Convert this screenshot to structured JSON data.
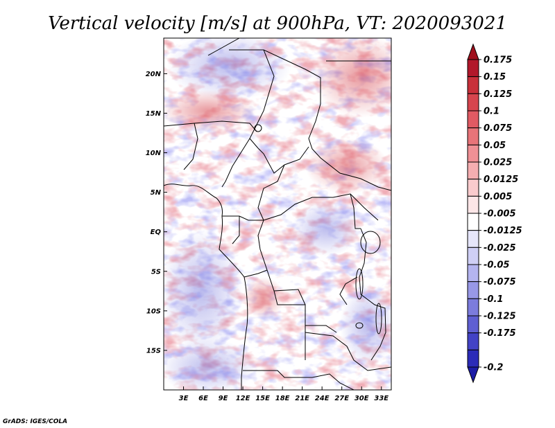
{
  "title": "Vertical velocity [m/s] at 900hPa, VT: 2020093021",
  "credit": "GrADS: IGES/COLA",
  "map": {
    "lon_range": [
      0,
      34.5
    ],
    "lat_range": [
      -20,
      24.5
    ],
    "lat_ticks": [
      {
        "value": 20,
        "label": "20N"
      },
      {
        "value": 15,
        "label": "15N"
      },
      {
        "value": 10,
        "label": "10N"
      },
      {
        "value": 5,
        "label": "5N"
      },
      {
        "value": 0,
        "label": "EQ"
      },
      {
        "value": -5,
        "label": "5S"
      },
      {
        "value": -10,
        "label": "10S"
      },
      {
        "value": -15,
        "label": "15S"
      }
    ],
    "lon_ticks": [
      {
        "value": 3,
        "label": "3E"
      },
      {
        "value": 6,
        "label": "6E"
      },
      {
        "value": 9,
        "label": "9E"
      },
      {
        "value": 12,
        "label": "12E"
      },
      {
        "value": 15,
        "label": "15E"
      },
      {
        "value": 18,
        "label": "18E"
      },
      {
        "value": 21,
        "label": "21E"
      },
      {
        "value": 24,
        "label": "24E"
      },
      {
        "value": 27,
        "label": "27E"
      },
      {
        "value": 30,
        "label": "30E"
      },
      {
        "value": 33,
        "label": "33E"
      }
    ]
  },
  "colorbar": {
    "levels": [
      {
        "label": "0.175",
        "color": "#b2182b"
      },
      {
        "label": "0.15",
        "color": "#c8303a"
      },
      {
        "label": "0.125",
        "color": "#d6454e"
      },
      {
        "label": "0.1",
        "color": "#e05a63"
      },
      {
        "label": "0.075",
        "color": "#e87479"
      },
      {
        "label": "0.05",
        "color": "#ef9095"
      },
      {
        "label": "0.025",
        "color": "#f5aeb1"
      },
      {
        "label": "0.0125",
        "color": "#f9cbcd"
      },
      {
        "label": "0.005",
        "color": "#fce6e7"
      },
      {
        "label": "-0.005",
        "color": "#ffffff"
      },
      {
        "label": "-0.0125",
        "color": "#e6e6fa"
      },
      {
        "label": "-0.025",
        "color": "#cfcff5"
      },
      {
        "label": "-0.05",
        "color": "#b4b4ef"
      },
      {
        "label": "-0.075",
        "color": "#9898e6"
      },
      {
        "label": "-0.1",
        "color": "#7c7cdd"
      },
      {
        "label": "-0.125",
        "color": "#5f5fd2"
      },
      {
        "label": "-0.175",
        "color": "#4343c6"
      },
      {
        "label": "-0.2",
        "color": "#2b2bb8"
      }
    ],
    "top_arrow_color": "#a0101d",
    "bottom_arrow_color": "#1c1ca6"
  }
}
